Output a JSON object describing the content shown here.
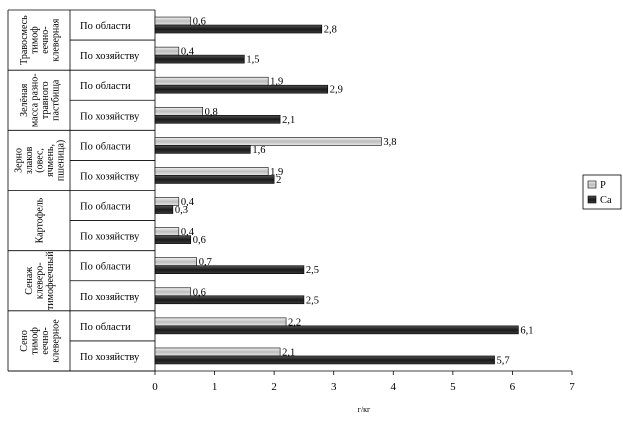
{
  "chart_data": {
    "type": "bar",
    "orientation": "horizontal",
    "xlabel": "г/кг",
    "xlim": [
      0,
      7
    ],
    "xticks": [
      0,
      1,
      2,
      3,
      4,
      5,
      6,
      7
    ],
    "legend": {
      "placement": "right"
    },
    "series": [
      {
        "name": "P",
        "color": "#d9d9d9"
      },
      {
        "name": "Ca",
        "color": "#262626"
      }
    ],
    "groups": [
      {
        "label_lines": [
          "Травосмесь",
          "тимоф",
          "еечно-",
          "клеверная"
        ],
        "rows": [
          {
            "category": "По области",
            "P": 0.6,
            "Ca": 2.8,
            "P_label": "0,6",
            "Ca_label": "2,8"
          },
          {
            "category": "По хозяйству",
            "P": 0.4,
            "Ca": 1.5,
            "P_label": "0,4",
            "Ca_label": "1,5"
          }
        ]
      },
      {
        "label_lines": [
          "Зелёная",
          "масса разно-",
          "травного",
          "пастбища"
        ],
        "rows": [
          {
            "category": "По области",
            "P": 1.9,
            "Ca": 2.9,
            "P_label": "1,9",
            "Ca_label": "2,9"
          },
          {
            "category": "По хозяйству",
            "P": 0.8,
            "Ca": 2.1,
            "P_label": "0,8",
            "Ca_label": "2,1"
          }
        ]
      },
      {
        "label_lines": [
          "Зерно",
          "злаков",
          "(овес,",
          "ячмень,",
          "пшеница)"
        ],
        "rows": [
          {
            "category": "По области",
            "P": 3.8,
            "Ca": 1.6,
            "P_label": "3,8",
            "Ca_label": "1,6"
          },
          {
            "category": "По хозяйству",
            "P": 1.9,
            "Ca": 2.0,
            "P_label": "1,9",
            "Ca_label": "2"
          }
        ]
      },
      {
        "label_lines": [
          "Картофель"
        ],
        "rows": [
          {
            "category": "По области",
            "P": 0.4,
            "Ca": 0.3,
            "P_label": "0,4",
            "Ca_label": "0,3"
          },
          {
            "category": "По хозяйству",
            "P": 0.4,
            "Ca": 0.6,
            "P_label": "0,4",
            "Ca_label": "0,6"
          }
        ]
      },
      {
        "label_lines": [
          "Сенаж",
          "клеверо-",
          "тимофеечный"
        ],
        "rows": [
          {
            "category": "По области",
            "P": 0.7,
            "Ca": 2.5,
            "P_label": "0,7",
            "Ca_label": "2,5"
          },
          {
            "category": "По хозяйству",
            "P": 0.6,
            "Ca": 2.5,
            "P_label": "0,6",
            "Ca_label": "2,5"
          }
        ]
      },
      {
        "label_lines": [
          "Сено",
          "тимоф",
          "еечно-",
          "клеверное"
        ],
        "rows": [
          {
            "category": "По области",
            "P": 2.2,
            "Ca": 6.1,
            "P_label": "2,2",
            "Ca_label": "6,1"
          },
          {
            "category": "По хозяйству",
            "P": 2.1,
            "Ca": 5.7,
            "P_label": "2,1",
            "Ca_label": "5,7"
          }
        ]
      }
    ]
  }
}
